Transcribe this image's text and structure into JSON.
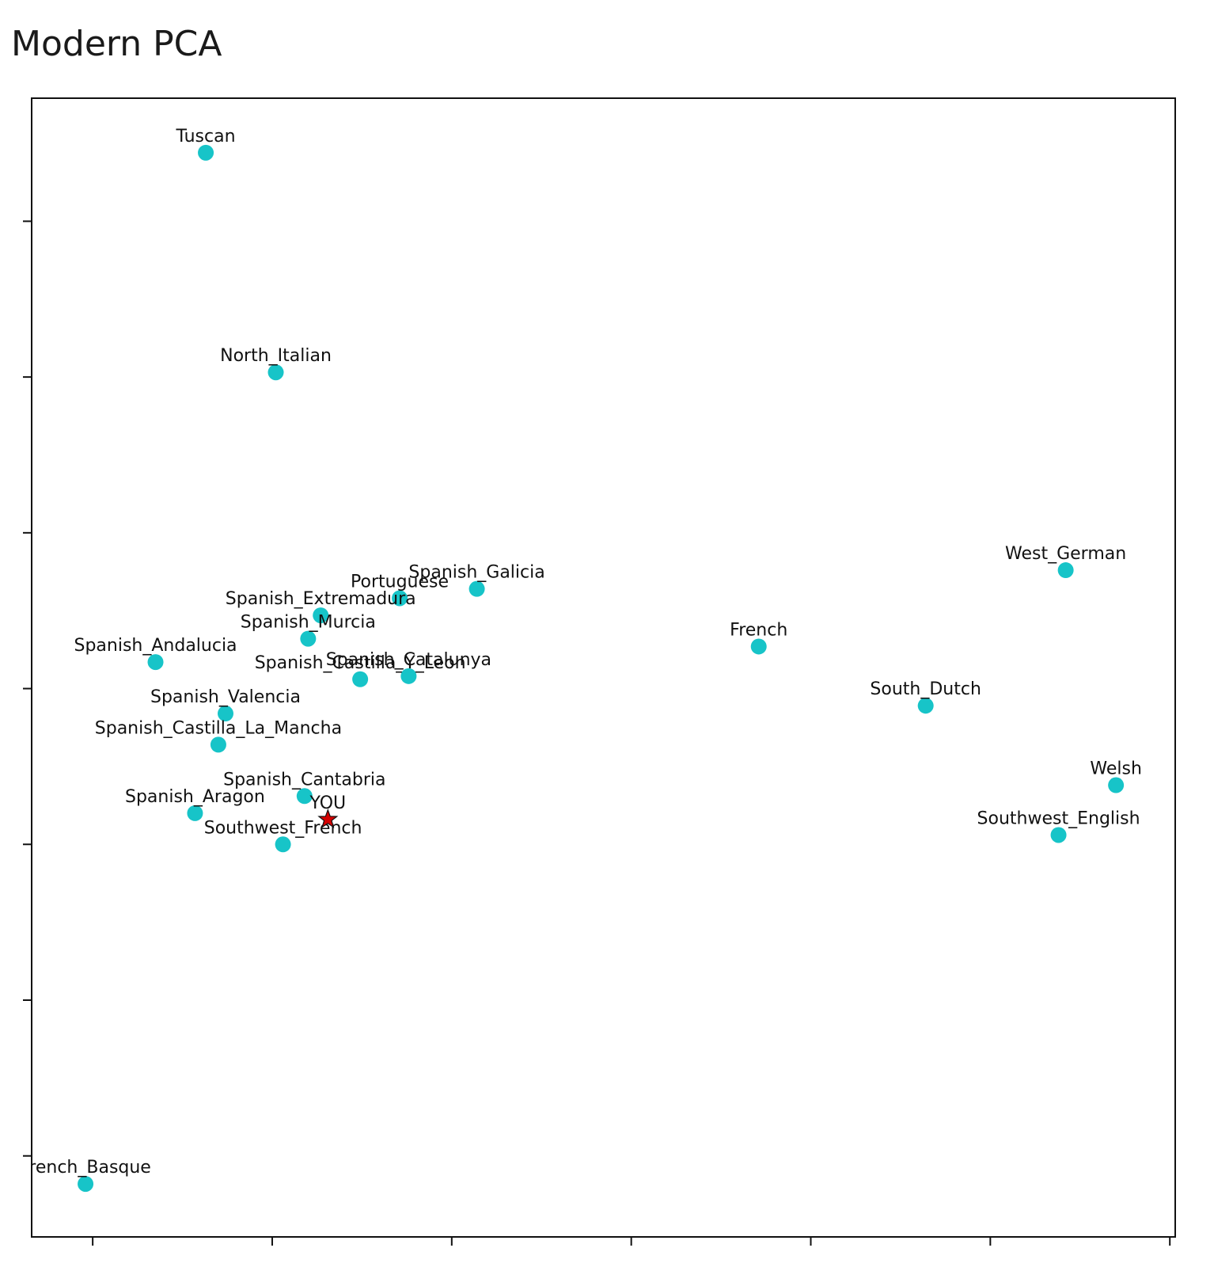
{
  "chart_data": {
    "type": "scatter",
    "title": "Modern PCA",
    "labels": [
      "Tuscan",
      "North_Italian",
      "Spanish_Galicia",
      "Portuguese",
      "Spanish_Extremadura",
      "Spanish_Murcia",
      "Spanish_Andalucia",
      "Spanish_Castilla_Y_Leon",
      "Spanish_Catalunya",
      "French",
      "West_German",
      "South_Dutch",
      "Spanish_Valencia",
      "Spanish_Castilla_La_Mancha",
      "Welsh",
      "Southwest_English",
      "Spanish_Cantabria",
      "Spanish_Aragon",
      "Southwest_French",
      "French_Basque"
    ],
    "x": [
      0.63,
      1.02,
      2.14,
      1.71,
      1.27,
      1.2,
      0.35,
      1.49,
      1.76,
      3.71,
      5.42,
      4.64,
      0.74,
      0.7,
      5.7,
      5.38,
      1.18,
      0.57,
      1.06,
      -0.04
    ],
    "values": [
      6.44,
      5.03,
      3.64,
      3.58,
      3.47,
      3.32,
      3.17,
      3.06,
      3.08,
      3.27,
      3.76,
      2.89,
      2.84,
      2.64,
      2.38,
      2.06,
      2.31,
      2.2,
      2.0,
      -0.18
    ],
    "color": "#17c4c8",
    "highlight": {
      "label": "YOU",
      "x": 1.31,
      "value": 2.16,
      "color": "#d40000",
      "marker": "star"
    },
    "xlim": [
      -0.34,
      6.03
    ],
    "ylim": [
      -0.52,
      6.79
    ],
    "xticks": [
      0,
      1,
      2,
      3,
      4,
      5,
      6
    ],
    "yticks": [
      0,
      1,
      2,
      3,
      4,
      5,
      6
    ]
  }
}
